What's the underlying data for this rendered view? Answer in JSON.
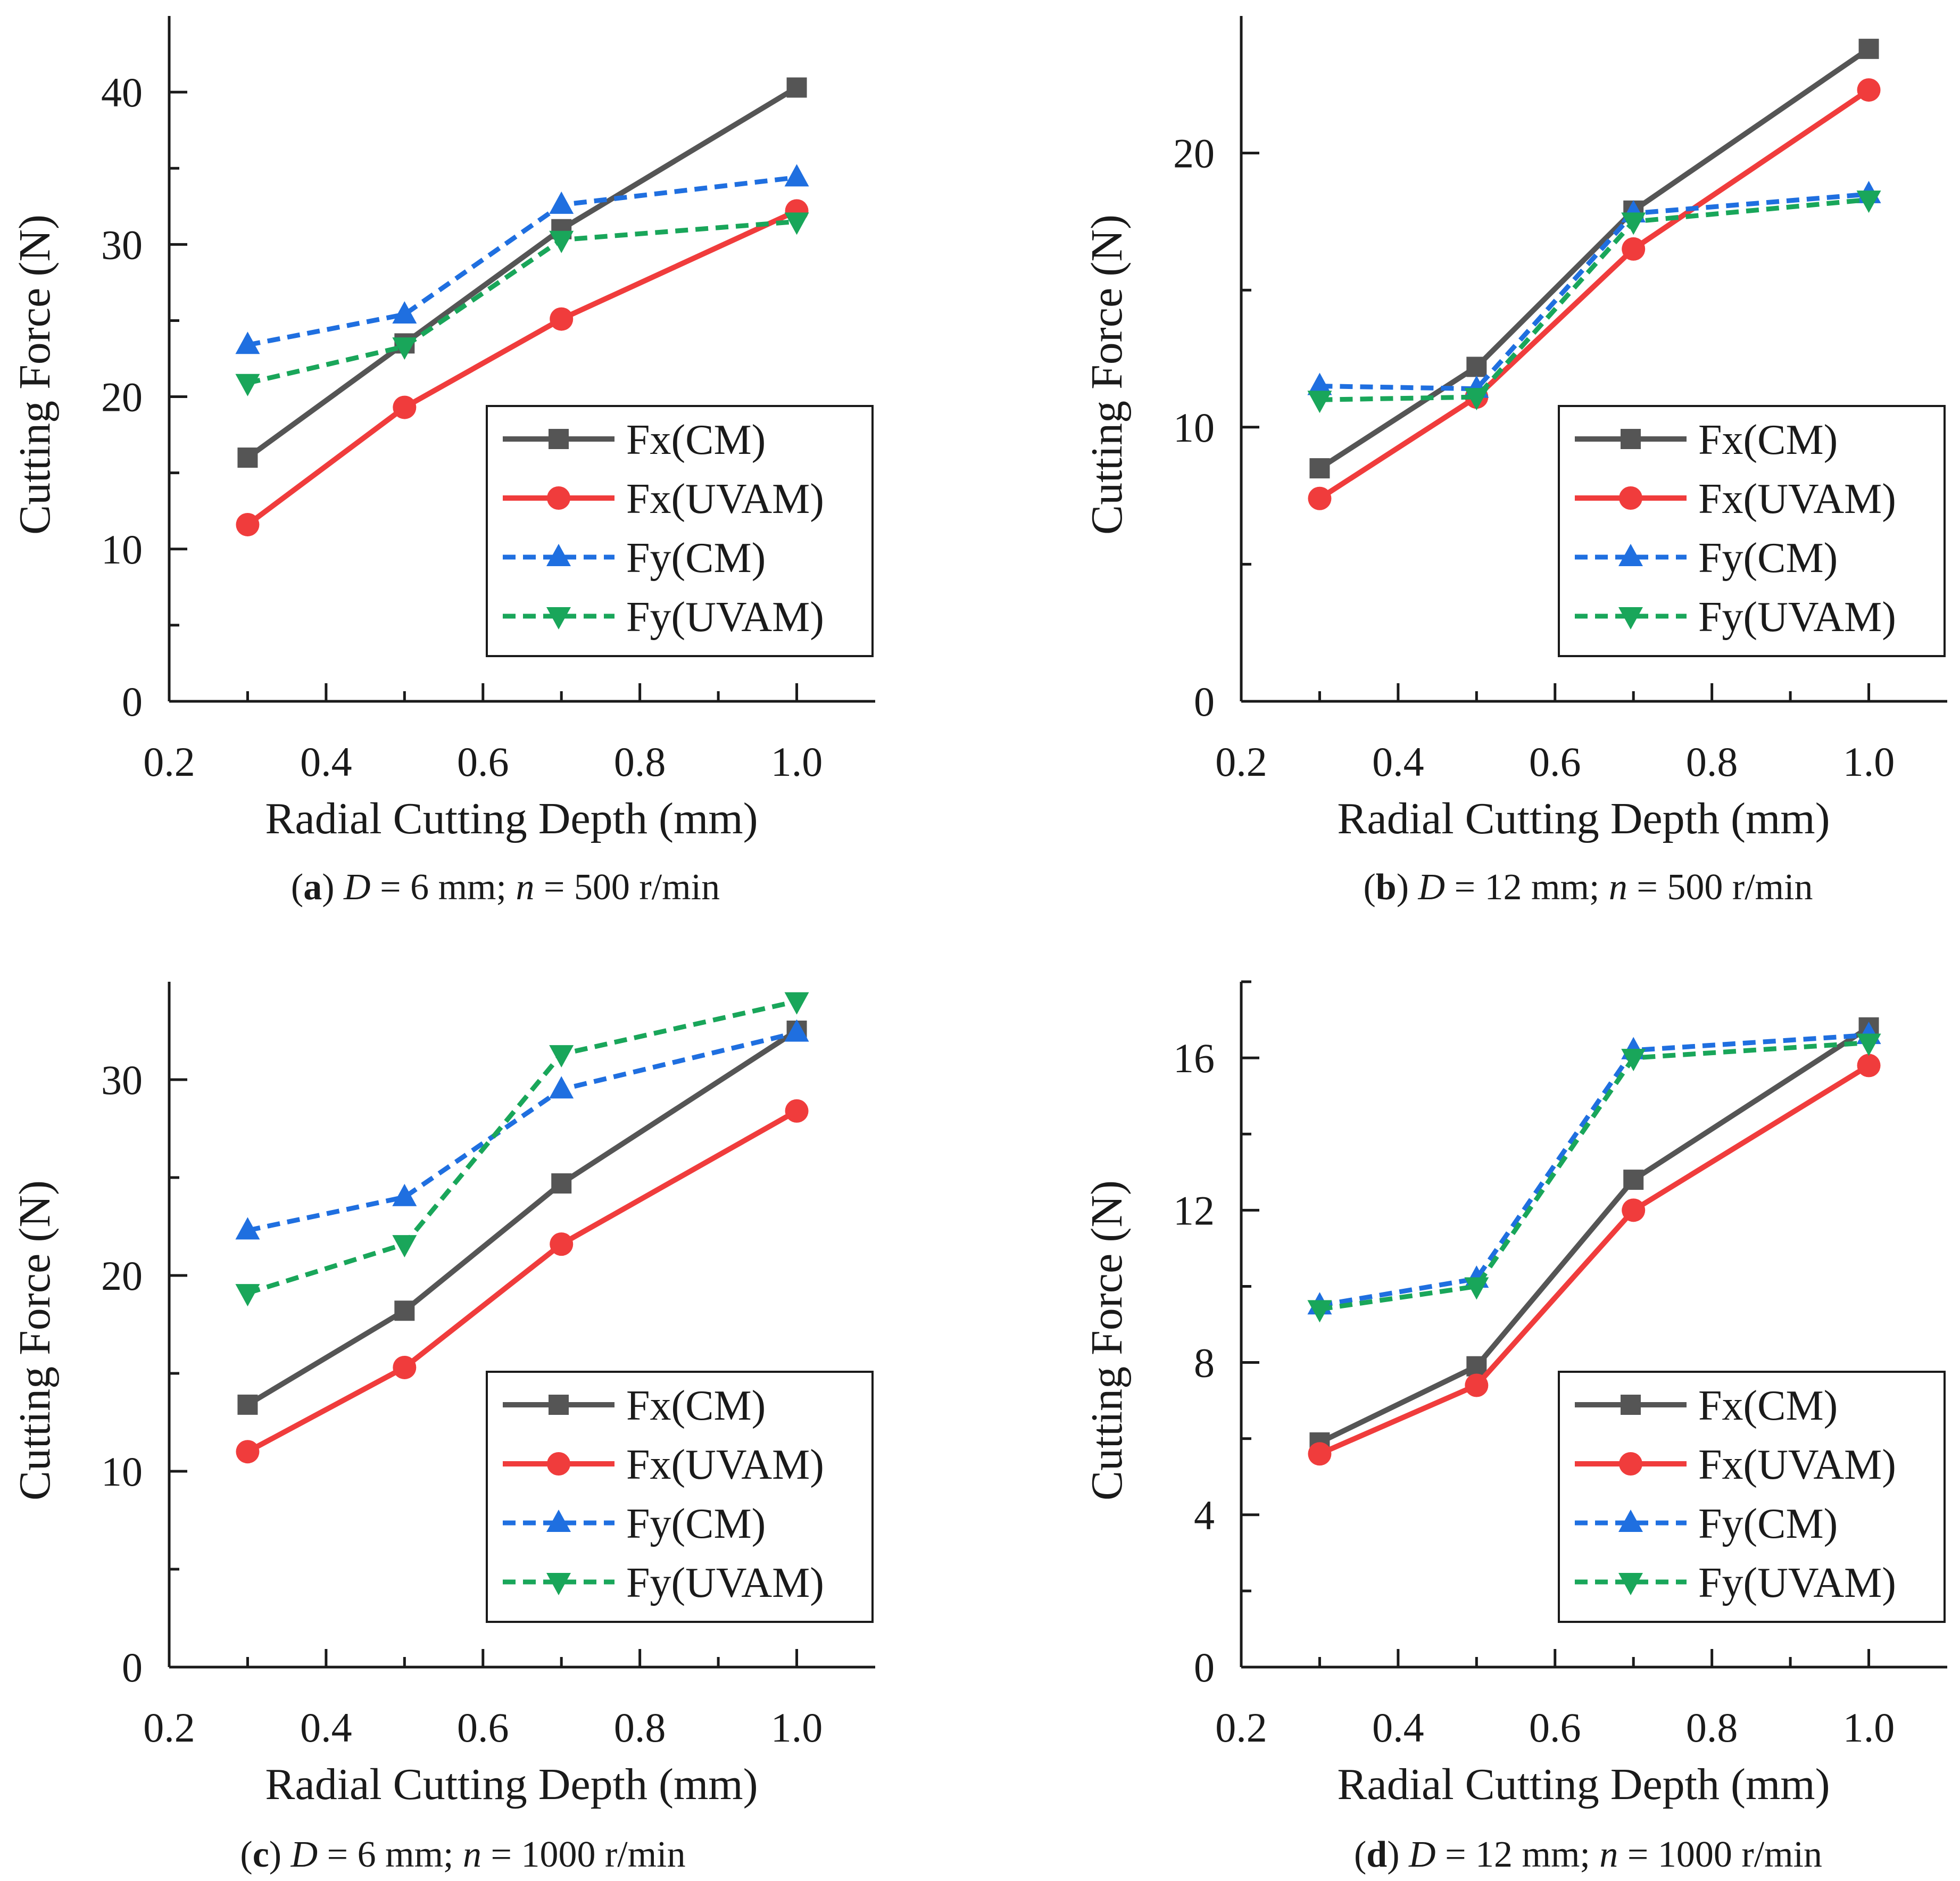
{
  "chart_data": [
    {
      "type": "line",
      "panel": "a",
      "caption": {
        "letter": "a",
        "d_label": "D",
        "d_value": " = 6 mm; ",
        "n_label": "n",
        "n_value": " = 500 r/min"
      },
      "xlabel": "Radial Cutting Depth (mm)",
      "ylabel": "Cutting Force (N)",
      "xlim": [
        0.2,
        1.1
      ],
      "ylim": [
        0,
        45
      ],
      "xticks": [
        0.2,
        0.4,
        0.6,
        0.8,
        1.0
      ],
      "xtick_labels": [
        "0.2",
        "0.4",
        "0.6",
        "0.8",
        "1.0"
      ],
      "yticks": [
        0,
        10,
        20,
        30,
        40
      ],
      "ytick_labels": [
        "0",
        "10",
        "20",
        "30",
        "40"
      ],
      "yminor": [
        5,
        15,
        25,
        35
      ],
      "legend_position": "lower-right",
      "x": [
        0.3,
        0.5,
        0.7,
        1.0
      ],
      "series": [
        {
          "name": "Fx(CM)",
          "values": [
            16.0,
            23.5,
            31.0,
            40.3
          ]
        },
        {
          "name": "Fx(UVAM)",
          "values": [
            11.6,
            19.3,
            25.1,
            32.2
          ]
        },
        {
          "name": "Fy(CM)",
          "values": [
            23.4,
            25.4,
            32.6,
            34.4
          ]
        },
        {
          "name": "Fy(UVAM)",
          "values": [
            20.9,
            23.3,
            30.3,
            31.5
          ]
        }
      ]
    },
    {
      "type": "line",
      "panel": "b",
      "caption": {
        "letter": "b",
        "d_label": "D",
        "d_value": " = 12 mm; ",
        "n_label": "n",
        "n_value": " = 500 r/min"
      },
      "xlabel": "Radial Cutting Depth (mm)",
      "ylabel": "Cutting Force (N)",
      "xlim": [
        0.2,
        1.1
      ],
      "ylim": [
        0,
        25
      ],
      "xticks": [
        0.2,
        0.4,
        0.6,
        0.8,
        1.0
      ],
      "xtick_labels": [
        "0.2",
        "0.4",
        "0.6",
        "0.8",
        "1.0"
      ],
      "yticks": [
        0,
        10,
        20
      ],
      "ytick_labels": [
        "0",
        "10",
        "20"
      ],
      "yminor": [
        5,
        15
      ],
      "legend_position": "lower-right",
      "x": [
        0.3,
        0.5,
        0.7,
        1.0
      ],
      "series": [
        {
          "name": "Fx(CM)",
          "values": [
            8.5,
            12.2,
            17.9,
            23.8
          ]
        },
        {
          "name": "Fx(UVAM)",
          "values": [
            7.4,
            11.1,
            16.5,
            22.3
          ]
        },
        {
          "name": "Fy(CM)",
          "values": [
            11.5,
            11.4,
            17.8,
            18.5
          ]
        },
        {
          "name": "Fy(UVAM)",
          "values": [
            11.0,
            11.1,
            17.5,
            18.3
          ]
        }
      ]
    },
    {
      "type": "line",
      "panel": "c",
      "caption": {
        "letter": "c",
        "d_label": "D",
        "d_value": " = 6 mm; ",
        "n_label": "n",
        "n_value": " = 1000 r/min"
      },
      "xlabel": "Radial Cutting Depth (mm)",
      "ylabel": "Cutting Force (N)",
      "xlim": [
        0.2,
        1.1
      ],
      "ylim": [
        0,
        35
      ],
      "xticks": [
        0.2,
        0.4,
        0.6,
        0.8,
        1.0
      ],
      "xtick_labels": [
        "0.2",
        "0.4",
        "0.6",
        "0.8",
        "1.0"
      ],
      "yticks": [
        0,
        10,
        20,
        30
      ],
      "ytick_labels": [
        "0",
        "10",
        "20",
        "30"
      ],
      "yminor": [
        5,
        15,
        25
      ],
      "legend_position": "lower-right",
      "x": [
        0.3,
        0.5,
        0.7,
        1.0
      ],
      "series": [
        {
          "name": "Fx(CM)",
          "values": [
            13.4,
            18.2,
            24.7,
            32.5
          ]
        },
        {
          "name": "Fx(UVAM)",
          "values": [
            11.0,
            15.3,
            21.6,
            28.4
          ]
        },
        {
          "name": "Fy(CM)",
          "values": [
            22.3,
            24.0,
            29.5,
            32.4
          ]
        },
        {
          "name": "Fy(UVAM)",
          "values": [
            19.1,
            21.6,
            31.3,
            34.0
          ]
        }
      ]
    },
    {
      "type": "line",
      "panel": "d",
      "caption": {
        "letter": "d",
        "d_label": "D",
        "d_value": " = 12 mm; ",
        "n_label": "n",
        "n_value": " = 1000 r/min"
      },
      "xlabel": "Radial Cutting Depth (mm)",
      "ylabel": "Cutting Force (N)",
      "xlim": [
        0.2,
        1.1
      ],
      "ylim": [
        0,
        18
      ],
      "xticks": [
        0.2,
        0.4,
        0.6,
        0.8,
        1.0
      ],
      "xtick_labels": [
        "0.2",
        "0.4",
        "0.6",
        "0.8",
        "1.0"
      ],
      "yticks": [
        0,
        4,
        8,
        12,
        16
      ],
      "ytick_labels": [
        "0",
        "4",
        "8",
        "12",
        "16"
      ],
      "yminor": [
        2,
        6,
        10,
        14,
        18
      ],
      "legend_position": "lower-right",
      "x": [
        0.3,
        0.5,
        0.7,
        1.0
      ],
      "series": [
        {
          "name": "Fx(CM)",
          "values": [
            5.9,
            7.9,
            12.8,
            16.8
          ]
        },
        {
          "name": "Fx(UVAM)",
          "values": [
            5.6,
            7.4,
            12.0,
            15.8
          ]
        },
        {
          "name": "Fy(CM)",
          "values": [
            9.5,
            10.2,
            16.2,
            16.6
          ]
        },
        {
          "name": "Fy(UVAM)",
          "values": [
            9.4,
            10.0,
            16.0,
            16.4
          ]
        }
      ]
    }
  ],
  "style": {
    "series_colors": [
      "#555555",
      "#f03c3c",
      "#1f6fe0",
      "#19a65a"
    ],
    "series_dash": [
      "",
      "",
      "dash",
      "dash"
    ],
    "series_markers": [
      "square",
      "circle",
      "triangle-up",
      "triangle-down"
    ],
    "axis_color": "#1a1a1a"
  }
}
